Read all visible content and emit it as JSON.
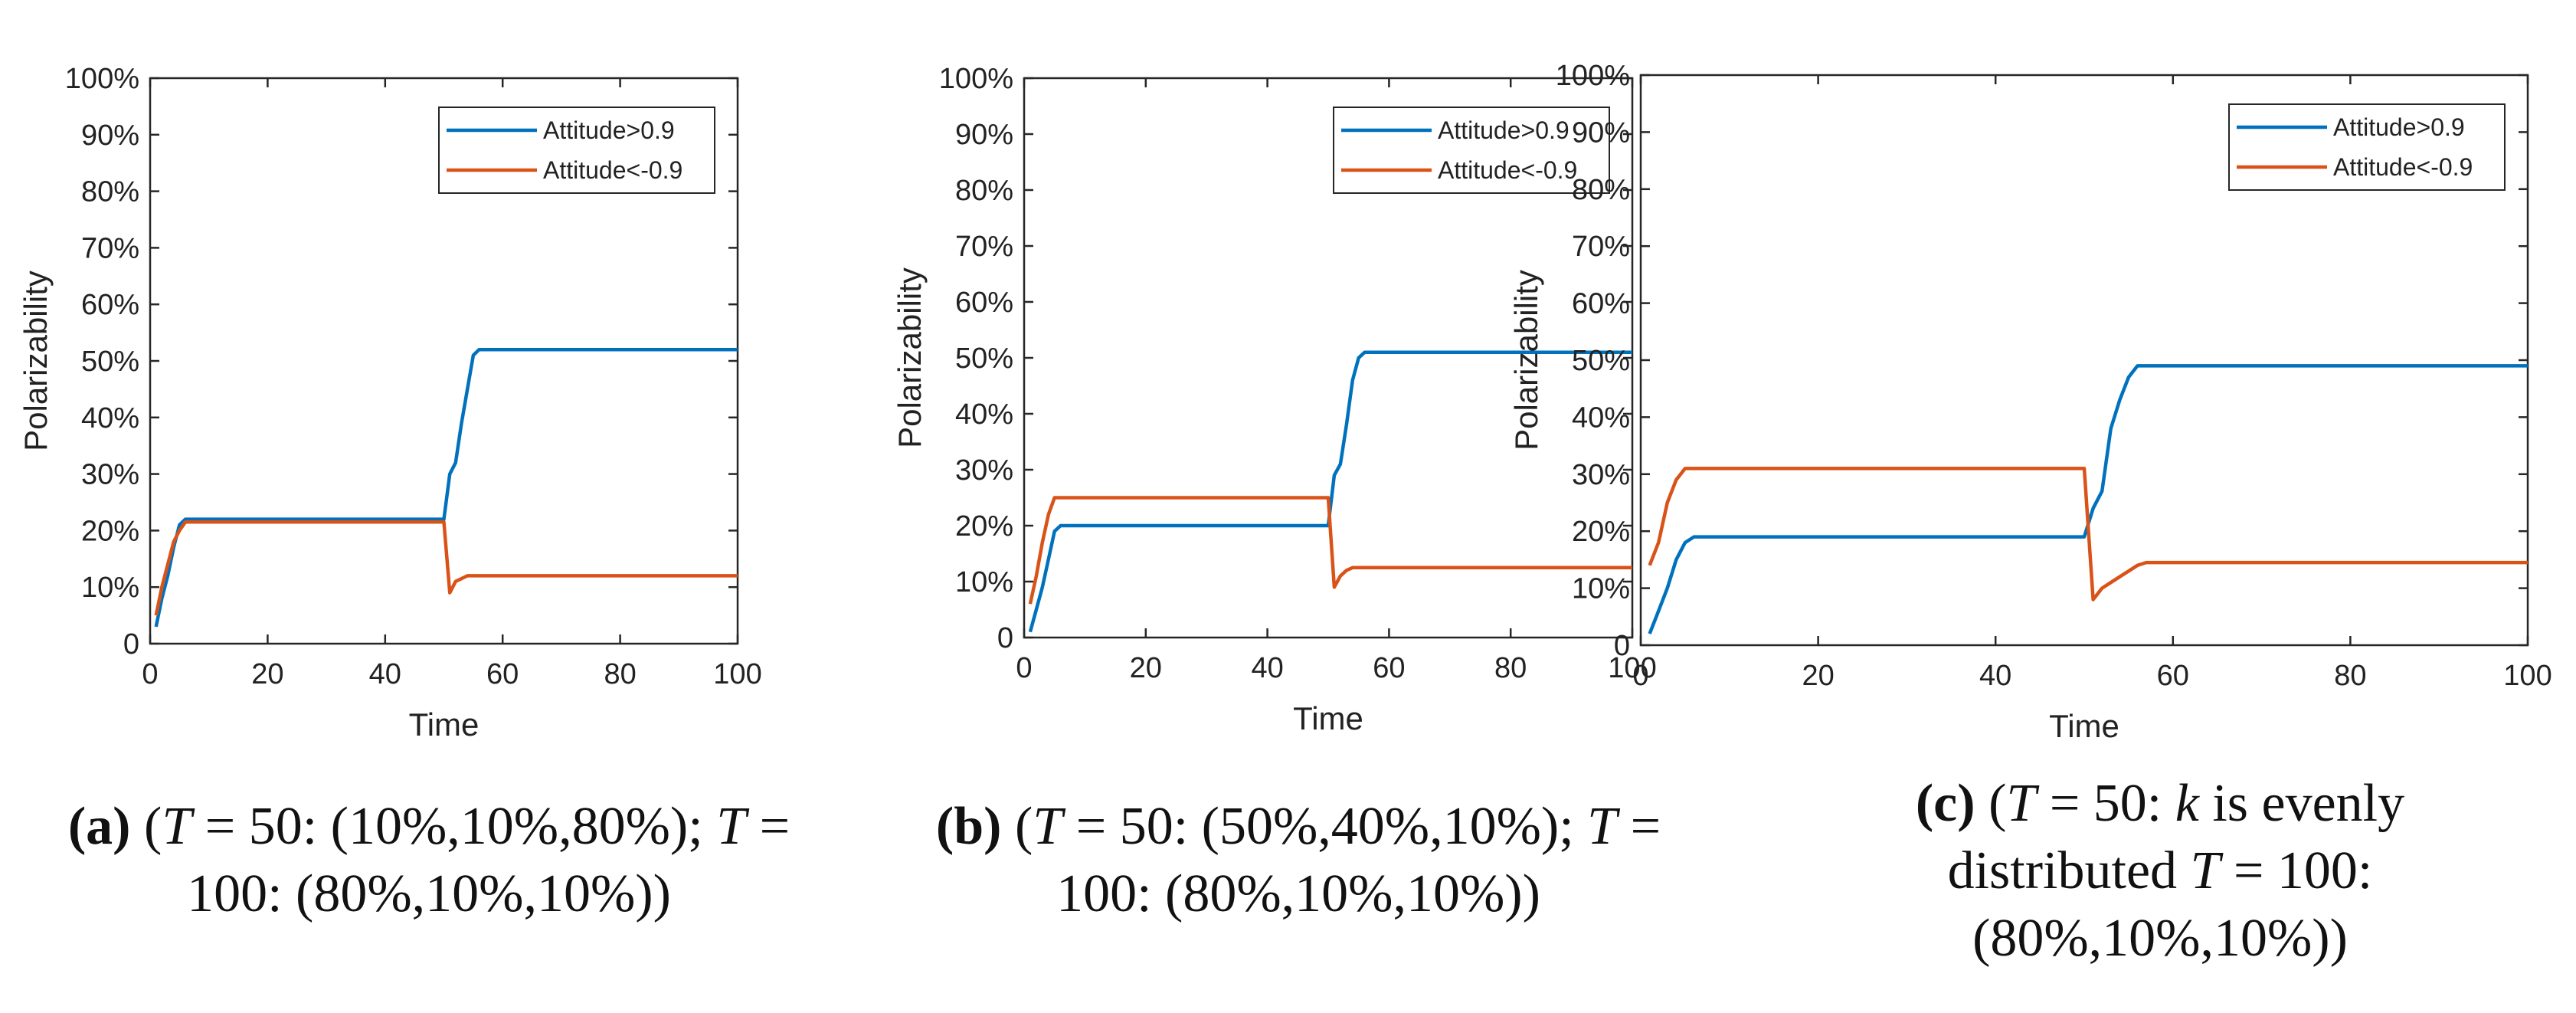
{
  "colors": {
    "series_high": "#0072bd",
    "series_low": "#d95319",
    "axis": "#262626",
    "background": "#ffffff"
  },
  "chart_data": [
    {
      "type": "line",
      "xlabel": "Time",
      "ylabel": "Polarizability",
      "xlim": [
        0,
        100
      ],
      "ylim": [
        0,
        100
      ],
      "xticks": [
        "0",
        "20",
        "40",
        "60",
        "80",
        "100"
      ],
      "yticks": [
        "0",
        "10%",
        "20%",
        "30%",
        "40%",
        "50%",
        "60%",
        "70%",
        "80%",
        "90%",
        "100%"
      ],
      "legend": "top-right",
      "series": [
        {
          "name": "Attitude>0.9",
          "x": [
            1,
            2,
            3,
            4,
            5,
            6,
            7,
            20,
            40,
            50,
            51,
            52,
            53,
            54,
            55,
            56,
            57,
            100
          ],
          "y": [
            3,
            8,
            12,
            17,
            21,
            22,
            22,
            22,
            22,
            22,
            30,
            32,
            39,
            45,
            51,
            52,
            52,
            52
          ]
        },
        {
          "name": "Attitude<-0.9",
          "x": [
            1,
            2,
            3,
            4,
            5,
            6,
            7,
            20,
            40,
            50,
            51,
            52,
            53,
            54,
            56,
            60,
            100
          ],
          "y": [
            5,
            10,
            14,
            18,
            20,
            21.5,
            21.5,
            21.5,
            21.5,
            21.5,
            9,
            11,
            11.5,
            12,
            12,
            12,
            12
          ]
        }
      ],
      "caption": {
        "label": "(a)",
        "line1_a": " (",
        "line1_b": " = 50: (10%,10%,80%); ",
        "line1_c": " =",
        "line2": "100: (80%,10%,10%))",
        "var_T": "T"
      }
    },
    {
      "type": "line",
      "xlabel": "Time",
      "ylabel": "Polarizability",
      "xlim": [
        0,
        100
      ],
      "ylim": [
        0,
        100
      ],
      "xticks": [
        "0",
        "20",
        "40",
        "60",
        "80",
        "100"
      ],
      "yticks": [
        "0",
        "10%",
        "20%",
        "30%",
        "40%",
        "50%",
        "60%",
        "70%",
        "80%",
        "90%",
        "100%"
      ],
      "legend": "top-right",
      "series": [
        {
          "name": "Attitude>0.9",
          "x": [
            1,
            2,
            3,
            4,
            5,
            6,
            7,
            20,
            40,
            50,
            51,
            52,
            53,
            54,
            55,
            56,
            57,
            100
          ],
          "y": [
            1,
            5,
            9,
            14,
            19,
            20,
            20,
            20,
            20,
            20,
            29,
            31,
            38,
            46,
            50,
            51,
            51,
            51
          ]
        },
        {
          "name": "Attitude<-0.9",
          "x": [
            1,
            2,
            3,
            4,
            5,
            6,
            7,
            20,
            40,
            50,
            51,
            52,
            53,
            54,
            56,
            60,
            100
          ],
          "y": [
            6,
            11,
            17,
            22,
            25,
            25,
            25,
            25,
            25,
            25,
            9,
            11,
            12,
            12.5,
            12.5,
            12.5,
            12.5
          ]
        }
      ],
      "caption": {
        "label": "(b)",
        "line1_a": " (",
        "line1_b": " = 50: (50%,40%,10%); ",
        "line1_c": " =",
        "line2": "100: (80%,10%,10%))",
        "var_T": "T"
      }
    },
    {
      "type": "line",
      "xlabel": "Time",
      "ylabel": "Polarizability",
      "xlim": [
        0,
        100
      ],
      "ylim": [
        0,
        100
      ],
      "xticks": [
        "0",
        "20",
        "40",
        "60",
        "80",
        "100"
      ],
      "yticks": [
        "0",
        "10%",
        "20%",
        "30%",
        "40%",
        "50%",
        "60%",
        "70%",
        "80%",
        "90%",
        "100%"
      ],
      "legend": "top-right",
      "series": [
        {
          "name": "Attitude>0.9",
          "x": [
            1,
            2,
            3,
            4,
            5,
            6,
            7,
            20,
            40,
            50,
            51,
            52,
            53,
            54,
            55,
            56,
            57,
            100
          ],
          "y": [
            2,
            6,
            10,
            15,
            18,
            19,
            19,
            19,
            19,
            19,
            24,
            27,
            38,
            43,
            47,
            49,
            49,
            49
          ]
        },
        {
          "name": "Attitude<-0.9",
          "x": [
            1,
            2,
            3,
            4,
            5,
            6,
            7,
            20,
            40,
            50,
            51,
            52,
            53,
            54,
            55,
            56,
            57,
            60,
            100
          ],
          "y": [
            14,
            18,
            25,
            29,
            31,
            31,
            31,
            31,
            31,
            31,
            8,
            10,
            11,
            12,
            13,
            14,
            14.5,
            14.5,
            14.5
          ]
        }
      ],
      "caption": {
        "label": "(c)",
        "line1_a": " (",
        "line1_b": " = 50: ",
        "var_k": "k",
        "line1_c": " is evenly",
        "line2_a": "distributed ",
        "line2_b": " = 100:",
        "line3": "(80%,10%,10%))",
        "var_T": "T"
      }
    }
  ]
}
